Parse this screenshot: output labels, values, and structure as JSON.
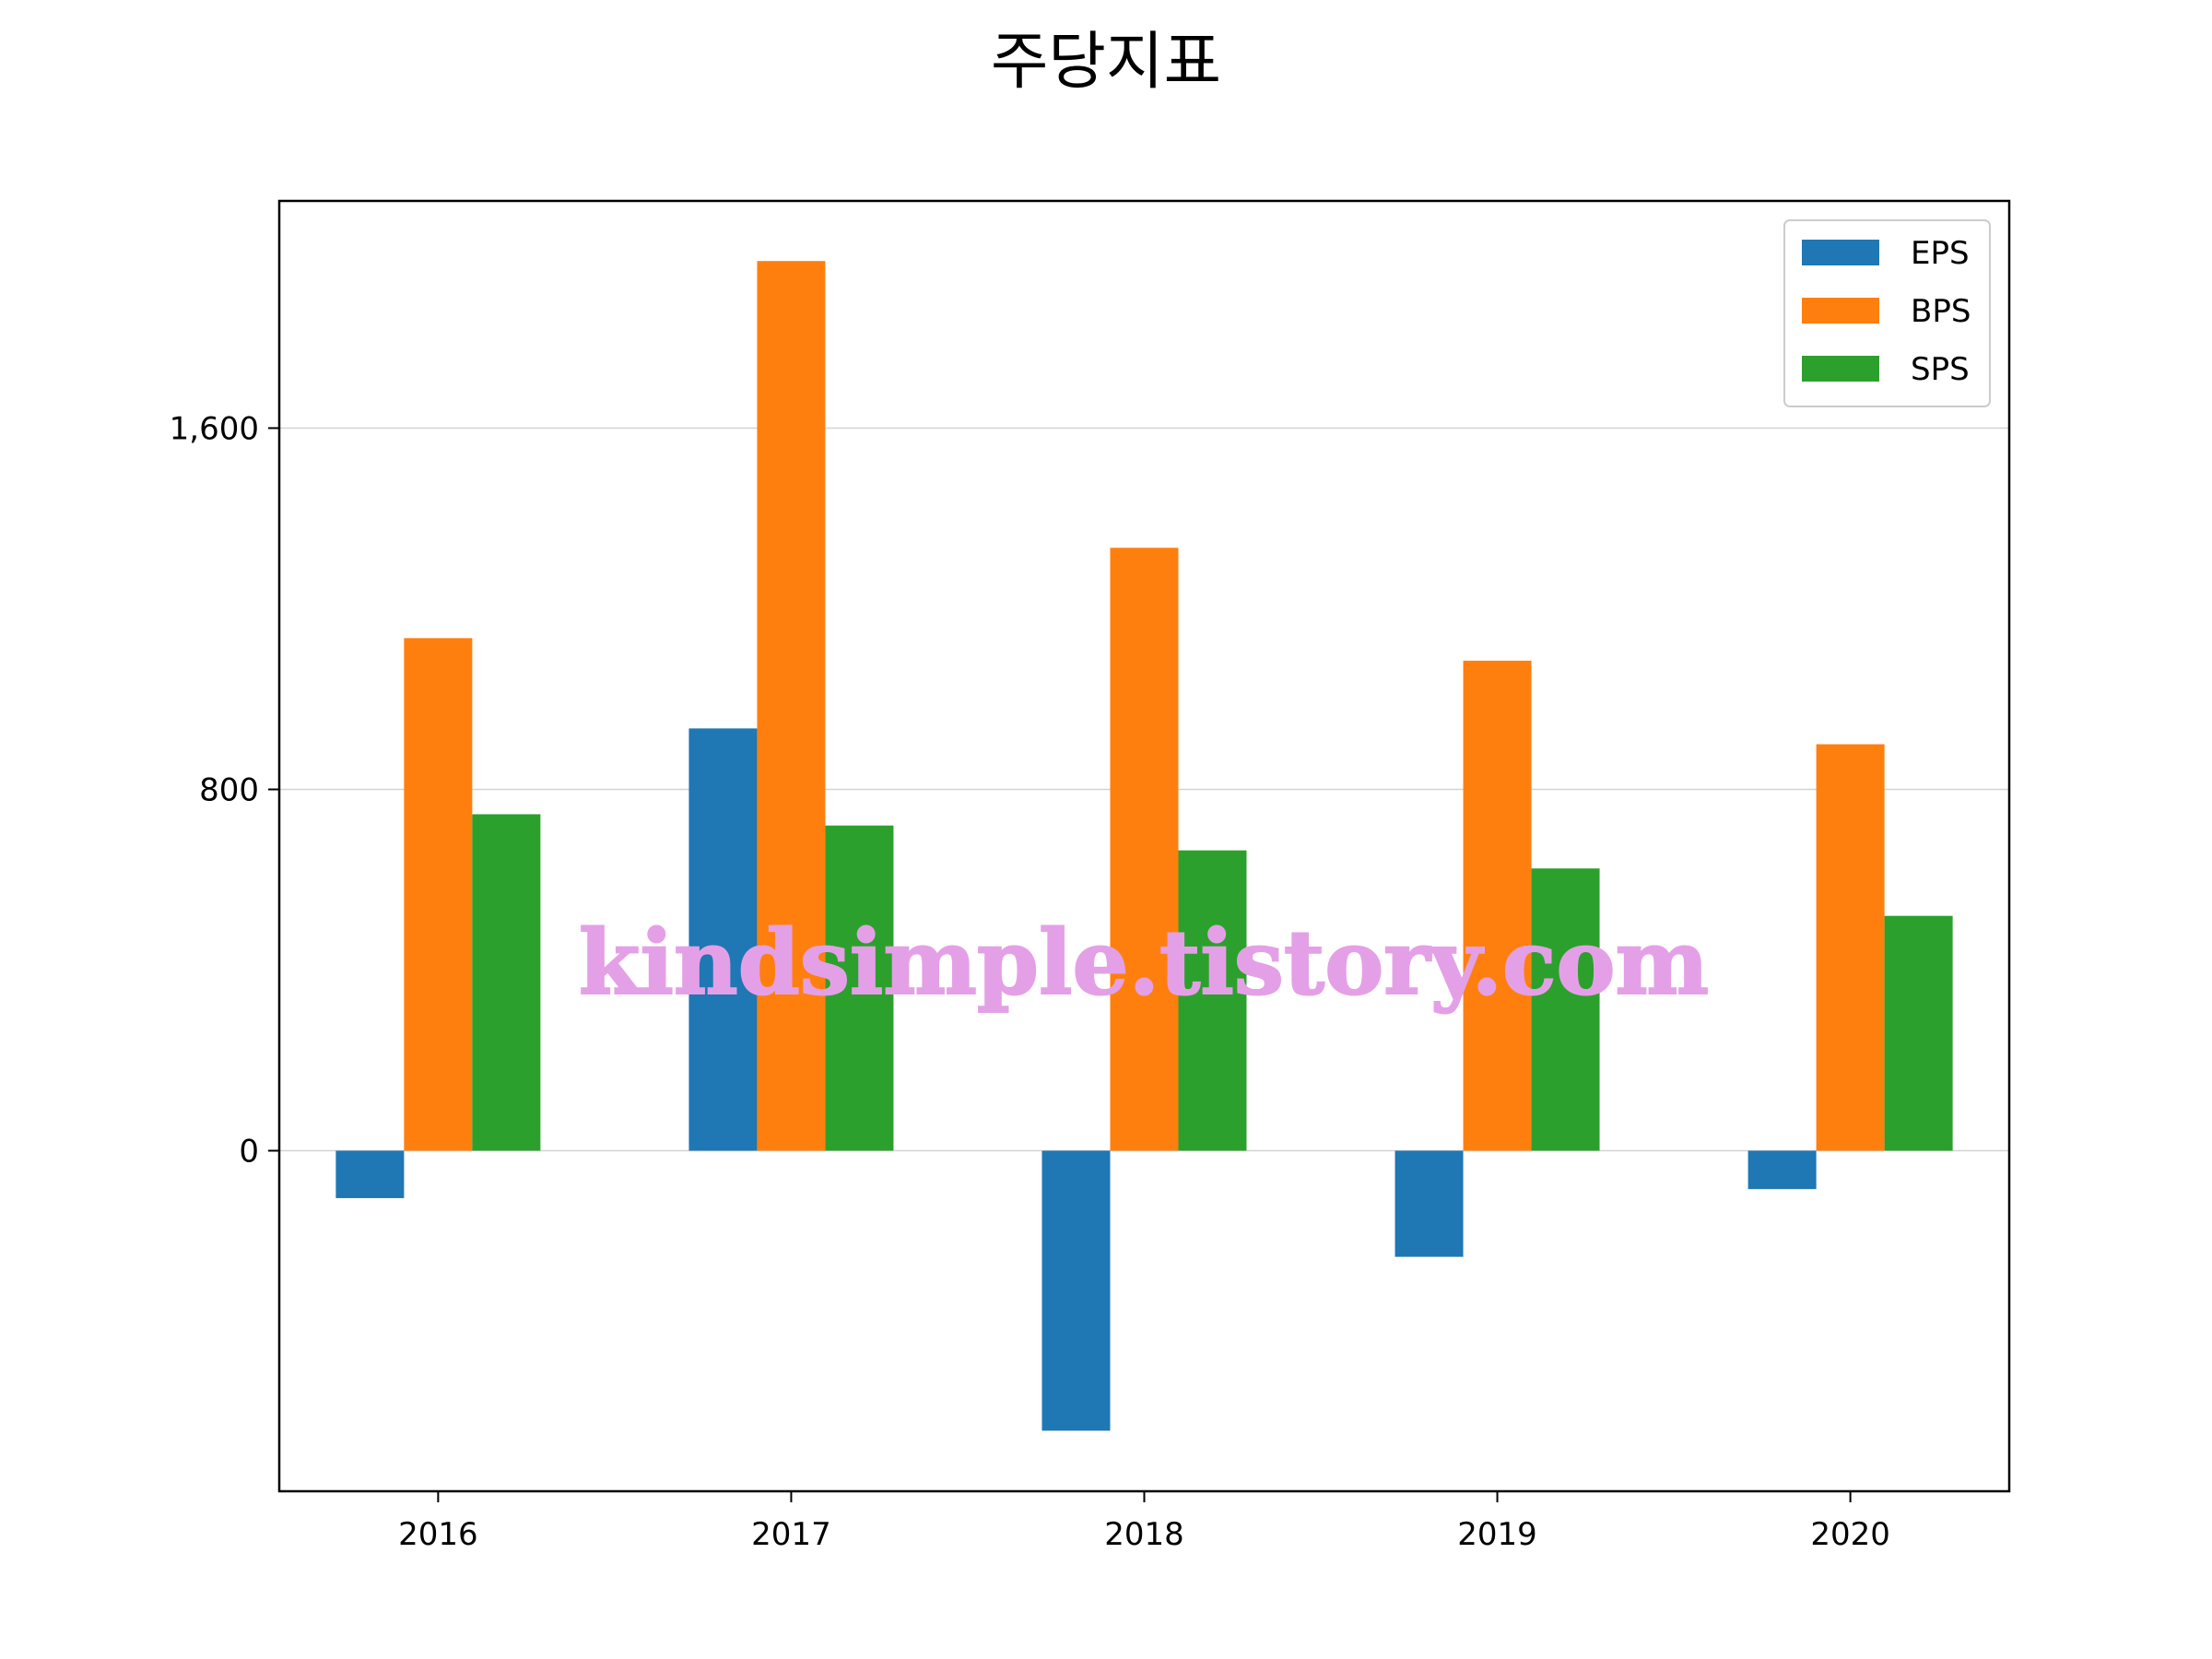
{
  "chart_data": {
    "type": "bar",
    "title": "주당지표",
    "categories": [
      "2016",
      "2017",
      "2018",
      "2019",
      "2020"
    ],
    "series": [
      {
        "name": "EPS",
        "color": "#1f77b4",
        "values": [
          -105,
          935,
          -620,
          -235,
          -85
        ]
      },
      {
        "name": "BPS",
        "color": "#ff7f0e",
        "values": [
          1135,
          1970,
          1335,
          1085,
          900
        ]
      },
      {
        "name": "SPS",
        "color": "#2ca02c",
        "values": [
          745,
          720,
          665,
          625,
          520
        ]
      }
    ],
    "yticks": [
      0,
      800,
      1600
    ],
    "ytick_labels": [
      "0",
      "800",
      "1,600"
    ],
    "ylim": [
      -750,
      2100
    ],
    "grid": "horizontal",
    "legend_position": "upper-right",
    "xlabel": "",
    "ylabel": ""
  },
  "watermark": {
    "text": "kindsimple.tistory.com",
    "color": "#e4a0e6"
  }
}
